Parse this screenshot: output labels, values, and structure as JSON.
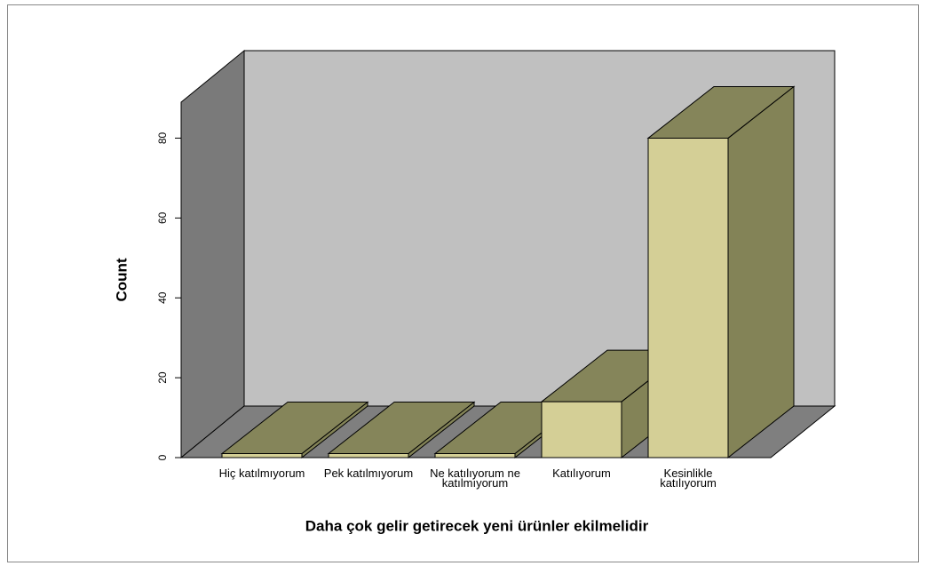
{
  "chart_data": {
    "type": "bar3d",
    "x_label": "Daha çok gelir getirecek yeni ürünler ekilmelidir",
    "y_label": "Count",
    "categories": [
      "Hiç katılmıyorum",
      "Pek katılmıyorum",
      "Ne katılıyorum ne katılmıyorum",
      "Katılıyorum",
      "Kesinlikle katılıyorum"
    ],
    "values": [
      1,
      1,
      1,
      14,
      80
    ],
    "color": "#d4cf96",
    "ylim": [
      0,
      89
    ],
    "yticks": [
      0,
      20,
      40,
      60,
      80
    ]
  }
}
